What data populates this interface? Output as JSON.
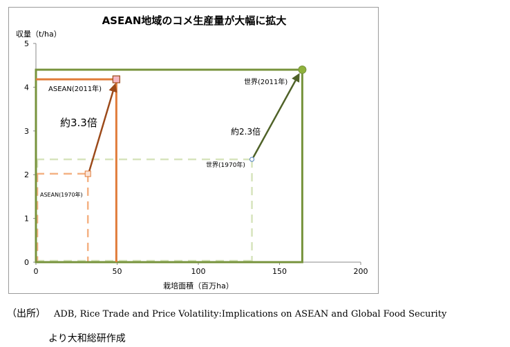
{
  "chart_data": {
    "type": "scatter",
    "title": "ASEAN地域のコメ生産量が大幅に拡大",
    "xlabel": "栽培面積（百万ha）",
    "ylabel": "収量（t/ha）",
    "xlim": [
      0,
      200
    ],
    "ylim": [
      0,
      5
    ],
    "xticks": [
      0,
      50,
      100,
      150,
      200
    ],
    "yticks": [
      0,
      1,
      2,
      3,
      4,
      5
    ],
    "grid": false,
    "series": [
      {
        "name": "ASEAN",
        "points": [
          {
            "x": 32,
            "y": 2.02,
            "label": "ASEAN(1970年)"
          },
          {
            "x": 49.5,
            "y": 4.18,
            "label": "ASEAN(2011年)"
          }
        ],
        "color": "#e07b39",
        "arrow_color": "#9c4a1a",
        "annotation": "約3.3倍"
      },
      {
        "name": "世界",
        "points": [
          {
            "x": 133,
            "y": 2.35,
            "label": "世界(1970年)"
          },
          {
            "x": 164,
            "y": 4.4,
            "label": "世界(2011年)"
          }
        ],
        "color": "#77933c",
        "arrow_color": "#4f6228",
        "annotation": "約2.3倍"
      }
    ]
  },
  "caption": {
    "source_label": "（出所）",
    "source_text": "ADB, Rice Trade and Price Volatility:Implications on ASEAN and Global Food Security",
    "second_line": "より大和総研作成"
  }
}
